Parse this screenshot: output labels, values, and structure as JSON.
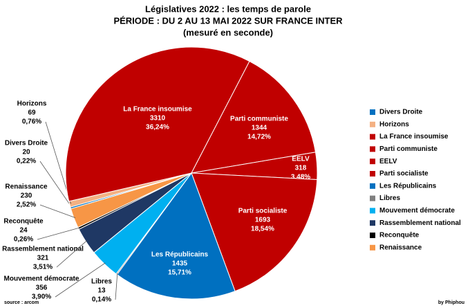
{
  "chart_data": {
    "type": "pie",
    "title": "Législatives 2022 : les temps de parole",
    "subtitle": "PÉRIODE : DU 2 AU 13 MAI 2022 SUR FRANCE INTER",
    "unit_note": "(mesuré en seconde)",
    "source": "source : arcom",
    "credit": "by Phiphou",
    "categories": [
      "Divers Droite",
      "Horizons",
      "La France insoumise",
      "Parti communiste",
      "EELV",
      "Parti socialiste",
      "Les Républicains",
      "Libres",
      "Mouvement démocrate",
      "Rassemblement national",
      "Reconquête",
      "Renaissance"
    ],
    "values": [
      20,
      69,
      3310,
      1344,
      318,
      1693,
      1435,
      13,
      356,
      321,
      24,
      230
    ],
    "percent_labels": [
      "0,22%",
      "0,76%",
      "36,24%",
      "14,72%",
      "3,48%",
      "18,54%",
      "15,71%",
      "0,14%",
      "3,90%",
      "3,51%",
      "0,26%",
      "2,52%"
    ],
    "colors": [
      "#0070c0",
      "#f4b183",
      "#c00000",
      "#c00000",
      "#c00000",
      "#c00000",
      "#0070c0",
      "#7f7f7f",
      "#00b0f0",
      "#1f3864",
      "#000000",
      "#f79646"
    ],
    "legend": "right"
  }
}
